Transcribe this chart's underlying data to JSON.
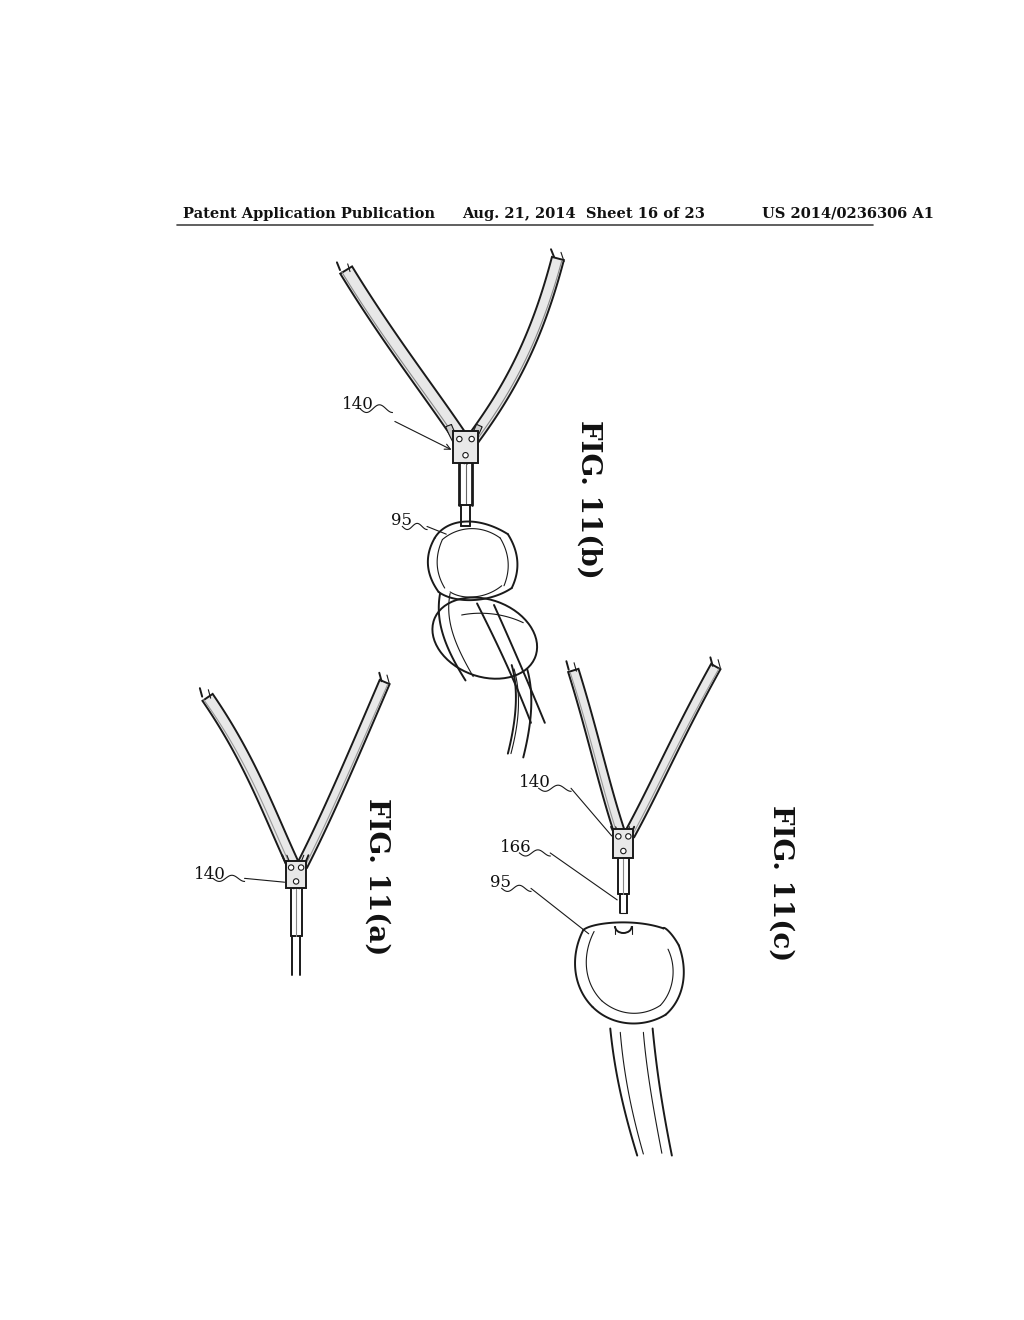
{
  "background_color": "#ffffff",
  "header_left": "Patent Application Publication",
  "header_center": "Aug. 21, 2014  Sheet 16 of 23",
  "header_right": "US 2014/0236306 A1",
  "fig_labels": [
    "FIG. 11(a)",
    "FIG. 11(b)",
    "FIG. 11(c)"
  ],
  "line_color": "#1a1a1a",
  "fill_light": "#e8e8e8",
  "fill_mid": "#cccccc",
  "fill_dark": "#888888"
}
